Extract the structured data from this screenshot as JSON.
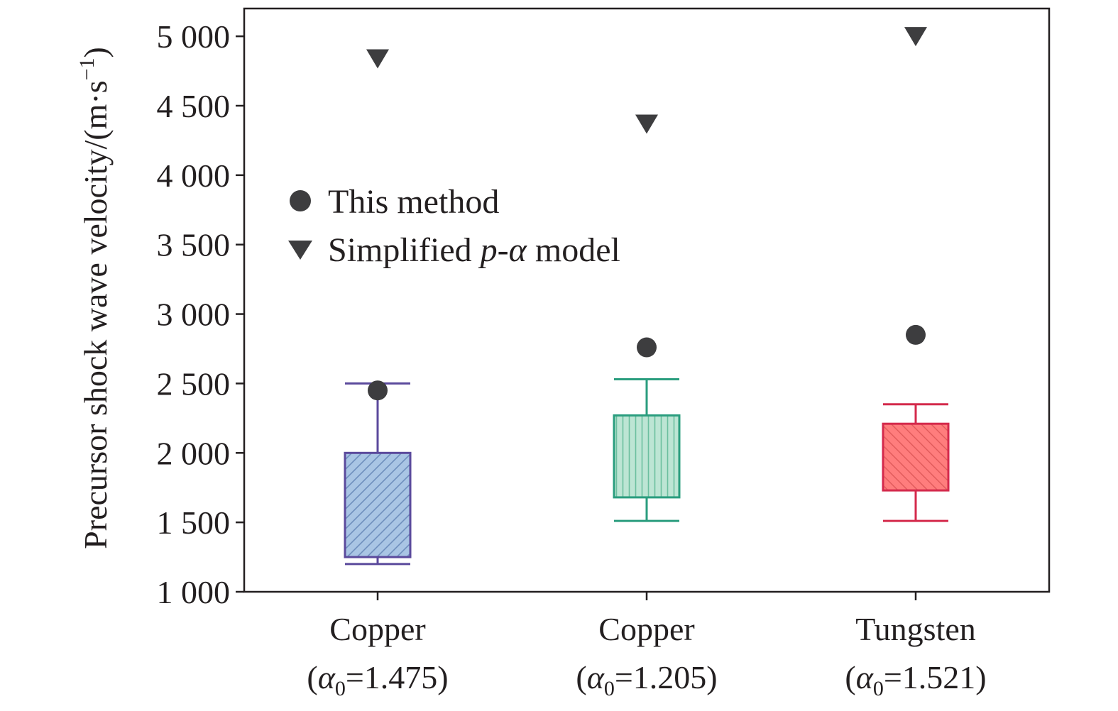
{
  "chart_data": {
    "type": "box",
    "ylabel": {
      "text": "Precursor shock wave velocity/(m·s",
      "sup": "−1",
      "close": ")"
    },
    "ylim": [
      1000,
      5200
    ],
    "yticks": [
      1000,
      1500,
      2000,
      2500,
      3000,
      3500,
      4000,
      4500,
      5000
    ],
    "ytick_labels": [
      "1 000",
      "1 500",
      "2 000",
      "2 500",
      "3 000",
      "3 500",
      "4 000",
      "4 500",
      "5 000"
    ],
    "categories": [
      {
        "name": "Copper",
        "alpha_symbol": "α",
        "alpha_sub": "0",
        "alpha_value": "=1.475",
        "open": "(",
        "close": ")"
      },
      {
        "name": "Copper",
        "alpha_symbol": "α",
        "alpha_sub": "0",
        "alpha_value": "=1.205",
        "open": "(",
        "close": ")"
      },
      {
        "name": "Tungsten",
        "alpha_symbol": "α",
        "alpha_sub": "0",
        "alpha_value": "=1.521",
        "open": "(",
        "close": ")"
      }
    ],
    "boxes": [
      {
        "whisker_low": 1200,
        "q1": 1250,
        "q3": 2000,
        "whisker_high": 2500,
        "edge_color": "#5b4a9c",
        "fill_color": "#a9c5e4",
        "hatch": "diagonal"
      },
      {
        "whisker_low": 1510,
        "q1": 1680,
        "q3": 2270,
        "whisker_high": 2530,
        "edge_color": "#2a9d7e",
        "fill_color": "#bde5d4",
        "hatch": "vertical"
      },
      {
        "whisker_low": 1510,
        "q1": 1730,
        "q3": 2210,
        "whisker_high": 2350,
        "edge_color": "#d42a4c",
        "fill_color": "#ff7d7d",
        "hatch": "diagonal"
      }
    ],
    "series": [
      {
        "name": "This method",
        "marker": "circle",
        "values": [
          2450,
          2760,
          2850
        ]
      },
      {
        "name": "Simplified p-α model",
        "marker": "triangle-down",
        "values": [
          4840,
          4370,
          5000
        ]
      }
    ],
    "legend": {
      "placement": "upper-left",
      "items": [
        {
          "marker": "circle",
          "label": "This method"
        },
        {
          "marker": "triangle-down",
          "label_prefix": "Simplified ",
          "label_italic": "p-α",
          "label_suffix": " model"
        }
      ]
    },
    "marker_color": "#3d3d3f",
    "frame_color": "#231f20"
  }
}
